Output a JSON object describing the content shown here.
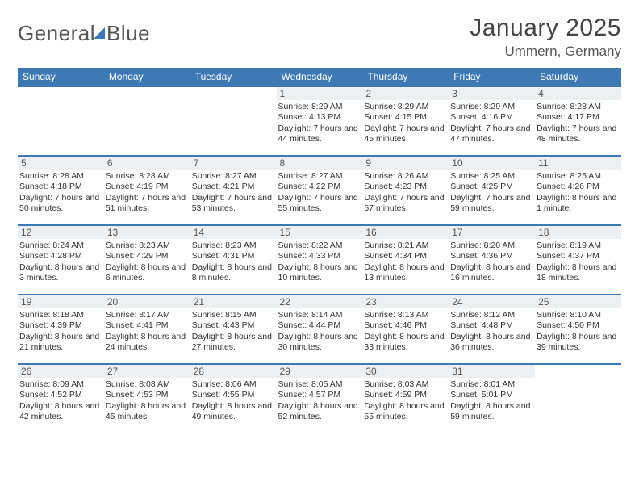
{
  "brand": {
    "name1": "General",
    "name2": "Blue"
  },
  "title": "January 2025",
  "location": "Ummern, Germany",
  "colors": {
    "accent": "#3c79b5",
    "daybar": "#edf0f2",
    "text": "#333333"
  },
  "weekdays": [
    "Sunday",
    "Monday",
    "Tuesday",
    "Wednesday",
    "Thursday",
    "Friday",
    "Saturday"
  ],
  "weeks": [
    [
      null,
      null,
      null,
      {
        "n": "1",
        "sr": "8:29 AM",
        "ss": "4:13 PM",
        "dl": "7 hours and 44 minutes."
      },
      {
        "n": "2",
        "sr": "8:29 AM",
        "ss": "4:15 PM",
        "dl": "7 hours and 45 minutes."
      },
      {
        "n": "3",
        "sr": "8:29 AM",
        "ss": "4:16 PM",
        "dl": "7 hours and 47 minutes."
      },
      {
        "n": "4",
        "sr": "8:28 AM",
        "ss": "4:17 PM",
        "dl": "7 hours and 48 minutes."
      }
    ],
    [
      {
        "n": "5",
        "sr": "8:28 AM",
        "ss": "4:18 PM",
        "dl": "7 hours and 50 minutes."
      },
      {
        "n": "6",
        "sr": "8:28 AM",
        "ss": "4:19 PM",
        "dl": "7 hours and 51 minutes."
      },
      {
        "n": "7",
        "sr": "8:27 AM",
        "ss": "4:21 PM",
        "dl": "7 hours and 53 minutes."
      },
      {
        "n": "8",
        "sr": "8:27 AM",
        "ss": "4:22 PM",
        "dl": "7 hours and 55 minutes."
      },
      {
        "n": "9",
        "sr": "8:26 AM",
        "ss": "4:23 PM",
        "dl": "7 hours and 57 minutes."
      },
      {
        "n": "10",
        "sr": "8:25 AM",
        "ss": "4:25 PM",
        "dl": "7 hours and 59 minutes."
      },
      {
        "n": "11",
        "sr": "8:25 AM",
        "ss": "4:26 PM",
        "dl": "8 hours and 1 minute."
      }
    ],
    [
      {
        "n": "12",
        "sr": "8:24 AM",
        "ss": "4:28 PM",
        "dl": "8 hours and 3 minutes."
      },
      {
        "n": "13",
        "sr": "8:23 AM",
        "ss": "4:29 PM",
        "dl": "8 hours and 6 minutes."
      },
      {
        "n": "14",
        "sr": "8:23 AM",
        "ss": "4:31 PM",
        "dl": "8 hours and 8 minutes."
      },
      {
        "n": "15",
        "sr": "8:22 AM",
        "ss": "4:33 PM",
        "dl": "8 hours and 10 minutes."
      },
      {
        "n": "16",
        "sr": "8:21 AM",
        "ss": "4:34 PM",
        "dl": "8 hours and 13 minutes."
      },
      {
        "n": "17",
        "sr": "8:20 AM",
        "ss": "4:36 PM",
        "dl": "8 hours and 16 minutes."
      },
      {
        "n": "18",
        "sr": "8:19 AM",
        "ss": "4:37 PM",
        "dl": "8 hours and 18 minutes."
      }
    ],
    [
      {
        "n": "19",
        "sr": "8:18 AM",
        "ss": "4:39 PM",
        "dl": "8 hours and 21 minutes."
      },
      {
        "n": "20",
        "sr": "8:17 AM",
        "ss": "4:41 PM",
        "dl": "8 hours and 24 minutes."
      },
      {
        "n": "21",
        "sr": "8:15 AM",
        "ss": "4:43 PM",
        "dl": "8 hours and 27 minutes."
      },
      {
        "n": "22",
        "sr": "8:14 AM",
        "ss": "4:44 PM",
        "dl": "8 hours and 30 minutes."
      },
      {
        "n": "23",
        "sr": "8:13 AM",
        "ss": "4:46 PM",
        "dl": "8 hours and 33 minutes."
      },
      {
        "n": "24",
        "sr": "8:12 AM",
        "ss": "4:48 PM",
        "dl": "8 hours and 36 minutes."
      },
      {
        "n": "25",
        "sr": "8:10 AM",
        "ss": "4:50 PM",
        "dl": "8 hours and 39 minutes."
      }
    ],
    [
      {
        "n": "26",
        "sr": "8:09 AM",
        "ss": "4:52 PM",
        "dl": "8 hours and 42 minutes."
      },
      {
        "n": "27",
        "sr": "8:08 AM",
        "ss": "4:53 PM",
        "dl": "8 hours and 45 minutes."
      },
      {
        "n": "28",
        "sr": "8:06 AM",
        "ss": "4:55 PM",
        "dl": "8 hours and 49 minutes."
      },
      {
        "n": "29",
        "sr": "8:05 AM",
        "ss": "4:57 PM",
        "dl": "8 hours and 52 minutes."
      },
      {
        "n": "30",
        "sr": "8:03 AM",
        "ss": "4:59 PM",
        "dl": "8 hours and 55 minutes."
      },
      {
        "n": "31",
        "sr": "8:01 AM",
        "ss": "5:01 PM",
        "dl": "8 hours and 59 minutes."
      },
      null
    ]
  ],
  "labels": {
    "sunrise": "Sunrise:",
    "sunset": "Sunset:",
    "daylight": "Daylight:"
  }
}
